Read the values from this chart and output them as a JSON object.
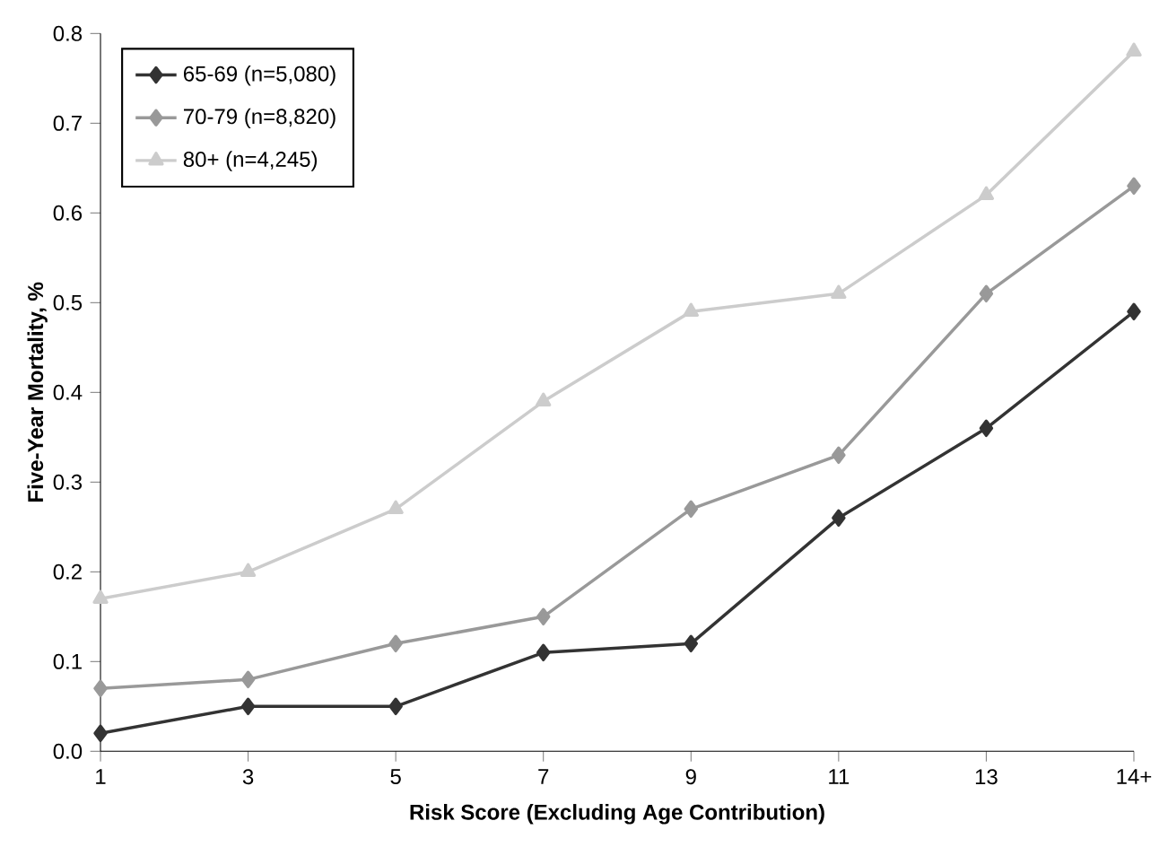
{
  "chart_data": {
    "type": "line",
    "xlabel": "Risk Score (Excluding Age Contribution)",
    "ylabel": "Five-Year Mortality, %",
    "categories": [
      "1",
      "3",
      "5",
      "7",
      "9",
      "11",
      "13",
      "14+"
    ],
    "ylim": [
      0,
      0.8
    ],
    "yticks": [
      {
        "value": 0,
        "label": "0.0"
      },
      {
        "value": 0.1,
        "label": "0.1"
      },
      {
        "value": 0.2,
        "label": "0.2"
      },
      {
        "value": 0.3,
        "label": "0.3"
      },
      {
        "value": 0.4,
        "label": "0.4"
      },
      {
        "value": 0.5,
        "label": "0.5"
      },
      {
        "value": 0.6,
        "label": "0.6"
      },
      {
        "value": 0.7,
        "label": "0.7"
      },
      {
        "value": 0.8,
        "label": "0.8"
      }
    ],
    "legend": "top left",
    "grid": false,
    "line_style": "solid",
    "series": [
      {
        "name": "65-69 (n=5,080)",
        "color": "#333333",
        "marker": "diamond",
        "values": [
          0.02,
          0.05,
          0.05,
          0.11,
          0.12,
          0.26,
          0.36,
          0.49
        ]
      },
      {
        "name": "70-79 (n=8,820)",
        "color": "#999999",
        "marker": "diamond",
        "values": [
          0.07,
          0.08,
          0.12,
          0.15,
          0.27,
          0.33,
          0.51,
          0.63
        ]
      },
      {
        "name": "80+ (n=4,245)",
        "color": "#cccccc",
        "marker": "triangle",
        "values": [
          0.17,
          0.2,
          0.27,
          0.39,
          0.49,
          0.51,
          0.62,
          0.78
        ]
      }
    ]
  }
}
